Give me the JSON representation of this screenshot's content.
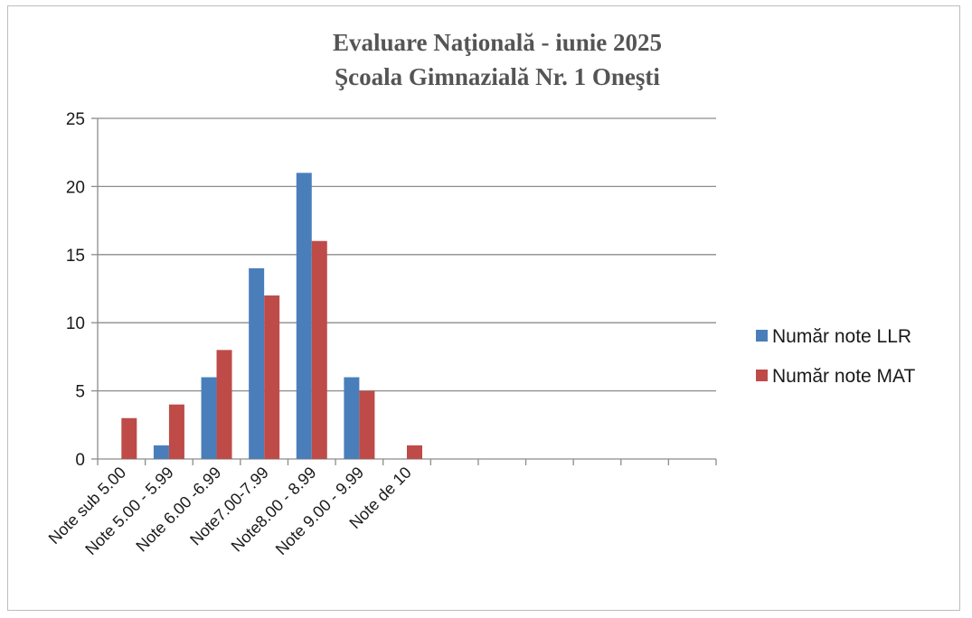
{
  "chart_data": {
    "type": "bar",
    "title": [
      "Evaluare Naţională - iunie 2025",
      "Şcoala Gimnazială Nr. 1 Oneşti"
    ],
    "categories": [
      "Note sub 5.00",
      "Note 5.00 - 5.99",
      "Note 6.00 -6.99",
      "Note7.00-7.99",
      "Note8.00 - 8.99",
      "Note 9.00 - 9.99",
      "Note de 10",
      "",
      "",
      "",
      "",
      "",
      ""
    ],
    "series": [
      {
        "name": "Număr note LLR",
        "color": "#4a7ebb",
        "values": [
          0,
          1,
          6,
          14,
          21,
          6,
          0,
          null,
          null,
          null,
          null,
          null,
          null
        ]
      },
      {
        "name": "Număr note MAT",
        "color": "#be4b48",
        "values": [
          3,
          4,
          8,
          12,
          16,
          5,
          1,
          null,
          null,
          null,
          null,
          null,
          null
        ]
      }
    ],
    "ylim": [
      0,
      25
    ],
    "yticks": [
      0,
      5,
      10,
      15,
      20,
      25
    ],
    "grid": true,
    "legend": "right"
  }
}
